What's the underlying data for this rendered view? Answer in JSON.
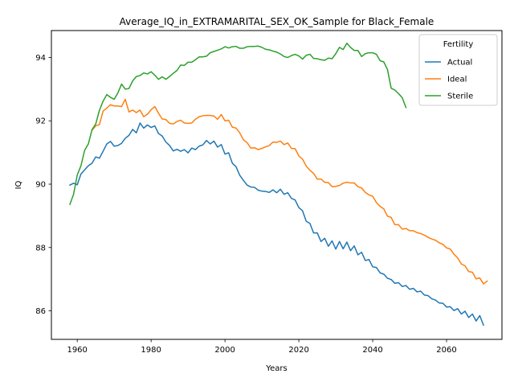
{
  "chart_data": {
    "type": "line",
    "title": "Average_IQ_in_EXTRAMARITAL_SEX_OK_Sample for Black_Female",
    "xlabel": "Years",
    "ylabel": "IQ",
    "xlim": [
      1953,
      2075
    ],
    "ylim": [
      85.1,
      94.85
    ],
    "x_ticks": [
      1960,
      1980,
      2000,
      2020,
      2040,
      2060
    ],
    "y_ticks": [
      86,
      88,
      90,
      92,
      94
    ],
    "grid": false,
    "legend": {
      "title": "Fertility",
      "placement": "top-right"
    },
    "series": [
      {
        "name": "Actual",
        "color": "#1f77b4",
        "x_start": 1958,
        "values": [
          89.97,
          90.03,
          89.98,
          90.32,
          90.45,
          90.58,
          90.66,
          90.86,
          90.82,
          91.04,
          91.27,
          91.35,
          91.2,
          91.22,
          91.29,
          91.45,
          91.54,
          91.73,
          91.62,
          91.93,
          91.77,
          91.87,
          91.79,
          91.84,
          91.6,
          91.52,
          91.33,
          91.22,
          91.05,
          91.1,
          91.04,
          91.09,
          90.99,
          91.14,
          91.09,
          91.2,
          91.24,
          91.38,
          91.27,
          91.36,
          91.17,
          91.25,
          90.95,
          90.99,
          90.66,
          90.55,
          90.28,
          90.12,
          89.97,
          89.91,
          89.9,
          89.81,
          89.78,
          89.77,
          89.74,
          89.82,
          89.73,
          89.84,
          89.68,
          89.73,
          89.55,
          89.5,
          89.26,
          89.16,
          88.83,
          88.76,
          88.46,
          88.46,
          88.19,
          88.29,
          88.04,
          88.21,
          87.95,
          88.19,
          87.96,
          88.17,
          87.9,
          88.05,
          87.77,
          87.85,
          87.59,
          87.62,
          87.39,
          87.37,
          87.2,
          87.16,
          87.03,
          86.99,
          86.87,
          86.89,
          86.77,
          86.8,
          86.68,
          86.71,
          86.6,
          86.62,
          86.5,
          86.48,
          86.38,
          86.34,
          86.25,
          86.24,
          86.12,
          86.13,
          86.01,
          86.07,
          85.9,
          85.99,
          85.79,
          85.9,
          85.68,
          85.85,
          85.55
        ]
      },
      {
        "name": "Ideal",
        "color": "#ff7f0e",
        "x_start": 1964,
        "values": [
          91.7,
          91.84,
          91.88,
          92.31,
          92.4,
          92.51,
          92.47,
          92.47,
          92.45,
          92.68,
          92.28,
          92.34,
          92.26,
          92.34,
          92.13,
          92.21,
          92.35,
          92.45,
          92.24,
          92.06,
          92.04,
          91.92,
          91.9,
          91.98,
          92.02,
          91.93,
          91.92,
          91.93,
          92.05,
          92.13,
          92.16,
          92.17,
          92.17,
          92.15,
          92.05,
          92.2,
          92.0,
          92.02,
          91.8,
          91.77,
          91.62,
          91.4,
          91.31,
          91.14,
          91.15,
          91.09,
          91.13,
          91.18,
          91.22,
          91.33,
          91.32,
          91.36,
          91.25,
          91.3,
          91.13,
          91.12,
          90.89,
          90.79,
          90.57,
          90.44,
          90.34,
          90.16,
          90.16,
          90.06,
          90.05,
          89.92,
          89.93,
          89.96,
          90.03,
          90.06,
          90.04,
          90.04,
          89.92,
          89.88,
          89.74,
          89.66,
          89.62,
          89.42,
          89.3,
          89.22,
          88.99,
          88.95,
          88.72,
          88.72,
          88.58,
          88.6,
          88.53,
          88.53,
          88.47,
          88.44,
          88.39,
          88.32,
          88.27,
          88.23,
          88.15,
          88.1,
          87.99,
          87.95,
          87.79,
          87.67,
          87.48,
          87.42,
          87.24,
          87.22,
          87.01,
          87.04,
          86.85,
          86.94
        ]
      },
      {
        "name": "Sterile",
        "color": "#2ca02c",
        "x_start": 1958,
        "values": [
          89.36,
          89.68,
          90.29,
          90.58,
          91.07,
          91.27,
          91.72,
          91.9,
          92.33,
          92.62,
          92.83,
          92.74,
          92.68,
          92.88,
          93.16,
          93.0,
          93.02,
          93.26,
          93.4,
          93.43,
          93.51,
          93.48,
          93.55,
          93.44,
          93.31,
          93.39,
          93.31,
          93.4,
          93.5,
          93.59,
          93.76,
          93.75,
          93.85,
          93.85,
          93.93,
          94.02,
          94.02,
          94.04,
          94.15,
          94.19,
          94.23,
          94.27,
          94.34,
          94.3,
          94.34,
          94.35,
          94.29,
          94.29,
          94.34,
          94.35,
          94.35,
          94.36,
          94.32,
          94.26,
          94.24,
          94.2,
          94.17,
          94.11,
          94.03,
          94.0,
          94.06,
          94.1,
          94.05,
          93.95,
          94.07,
          94.1,
          93.97,
          93.96,
          93.93,
          93.91,
          93.98,
          93.96,
          94.12,
          94.32,
          94.25,
          94.45,
          94.32,
          94.22,
          94.22,
          94.03,
          94.12,
          94.15,
          94.15,
          94.1,
          93.9,
          93.86,
          93.62,
          93.03,
          92.97,
          92.86,
          92.73,
          92.42
        ]
      }
    ]
  }
}
